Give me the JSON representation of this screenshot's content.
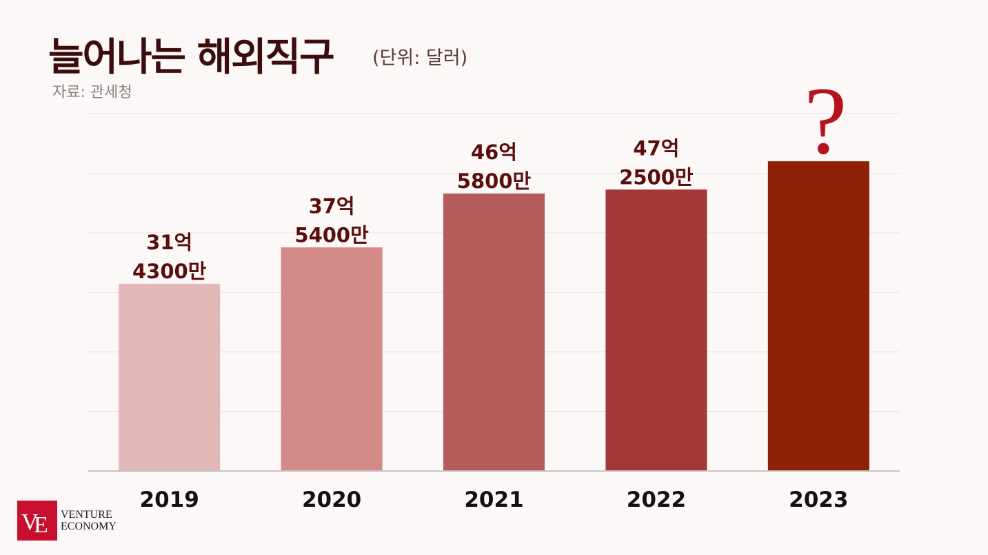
{
  "header": {
    "title": "늘어나는 해외직구",
    "unit": "(단위: 달러)",
    "source": "자료: 관세청"
  },
  "logo": {
    "line1": "VENTURE",
    "line2": "ECONOMY",
    "color": "#c8102e"
  },
  "chart_data": {
    "type": "bar",
    "categories": [
      "2019",
      "2020",
      "2021",
      "2022",
      "2023"
    ],
    "values": [
      3143000000,
      3754000000,
      4658000000,
      4725000000,
      null
    ],
    "data_labels": [
      [
        "31억",
        "4300만"
      ],
      [
        "37억",
        "5400만"
      ],
      [
        "46억",
        "5800만"
      ],
      [
        "47억",
        "2500만"
      ],
      [
        "?"
      ]
    ],
    "estimated_2023_bar_value": 5200000000,
    "colors": [
      "#e3b8b8",
      "#d48a87",
      "#b55b5c",
      "#a3383a",
      "#8e2108"
    ],
    "label_color": "#5a0d0d",
    "question_color": "#b5141e",
    "ylim": [
      0,
      6000000000
    ],
    "grid": true,
    "legend": "none"
  }
}
